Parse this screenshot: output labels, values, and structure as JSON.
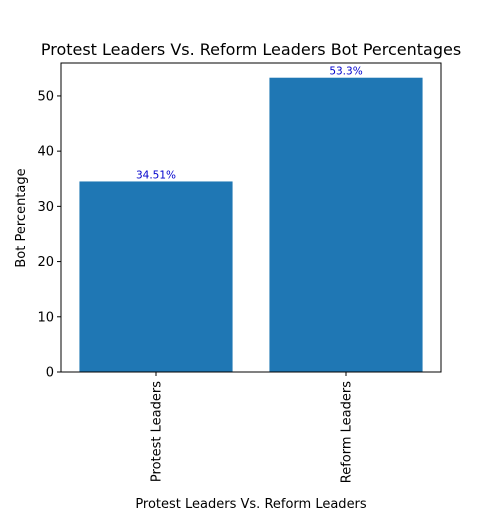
{
  "chart_data": {
    "type": "bar",
    "title": "Protest Leaders Vs. Reform Leaders Bot Percentages",
    "xlabel": "Protest Leaders Vs. Reform Leaders",
    "ylabel": "Bot Percentage",
    "categories": [
      "Protest Leaders",
      "Reform Leaders"
    ],
    "values": [
      34.51,
      53.3
    ],
    "data_labels": [
      "34.51%",
      "53.3%"
    ],
    "ylim": [
      0,
      55.965
    ],
    "yticks": [
      0,
      10,
      20,
      30,
      40,
      50
    ],
    "xtick_rotation": "vertical",
    "grid": false,
    "legend": "none",
    "bar_color": "#1f77b4",
    "data_label_color": "#0000cc"
  }
}
